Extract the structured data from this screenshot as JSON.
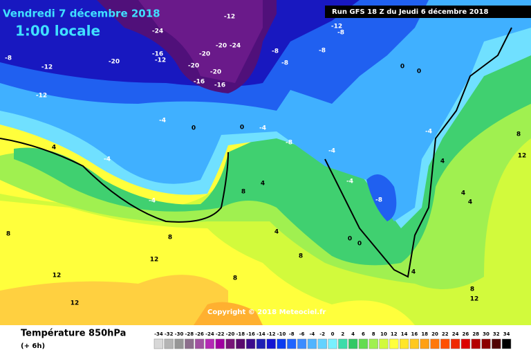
{
  "header": {
    "date": "Vendredi 7 décembre 2018",
    "time": "1:00 locale",
    "run": "Run GFS 18 Z du Jeudi 6 décembre 2018"
  },
  "copyright": "Copyright © 2018 Meteociel.fr",
  "footer": {
    "title": "Température 850hPa",
    "step": "(+ 6h)"
  },
  "contour_labels": [
    -24,
    -20,
    -12,
    -8,
    -12,
    -16,
    -12,
    -20,
    -20,
    -24,
    -20,
    -16,
    -16,
    -20,
    -12,
    -8,
    -8,
    -12,
    -8,
    -8,
    0,
    0,
    -4,
    0,
    0,
    -4,
    -4,
    4,
    -4,
    -8,
    -4,
    -4,
    -4,
    -8,
    4,
    8,
    4,
    4,
    8,
    12,
    4,
    8,
    12,
    12,
    12,
    8,
    4,
    8,
    0,
    0,
    4,
    8,
    12,
    8
  ],
  "scale": {
    "ticks": [
      -34,
      -32,
      -30,
      -28,
      -26,
      -24,
      -22,
      -20,
      -18,
      -16,
      -14,
      -12,
      -10,
      -8,
      -6,
      -4,
      -2,
      0,
      2,
      4,
      6,
      8,
      10,
      12,
      14,
      16,
      18,
      20,
      22,
      24,
      26,
      28,
      30,
      32,
      34
    ],
    "colors": [
      "#d8d8d8",
      "#b4b4b4",
      "#969696",
      "#8c6e8c",
      "#a050a0",
      "#b428b4",
      "#a000a0",
      "#781478",
      "#5a0a6e",
      "#3c0a8c",
      "#1e1eb4",
      "#1414d2",
      "#0a3cf0",
      "#1e64ff",
      "#3c8cff",
      "#50b4ff",
      "#64d2ff",
      "#78f0ff",
      "#3cdcaa",
      "#32c864",
      "#64dc50",
      "#a0f050",
      "#d2fa3c",
      "#ffff3c",
      "#ffe628",
      "#ffc81e",
      "#ffa014",
      "#ff780a",
      "#ff5000",
      "#f02800",
      "#dc0000",
      "#b40000",
      "#8c0000",
      "#500000",
      "#000000"
    ]
  }
}
